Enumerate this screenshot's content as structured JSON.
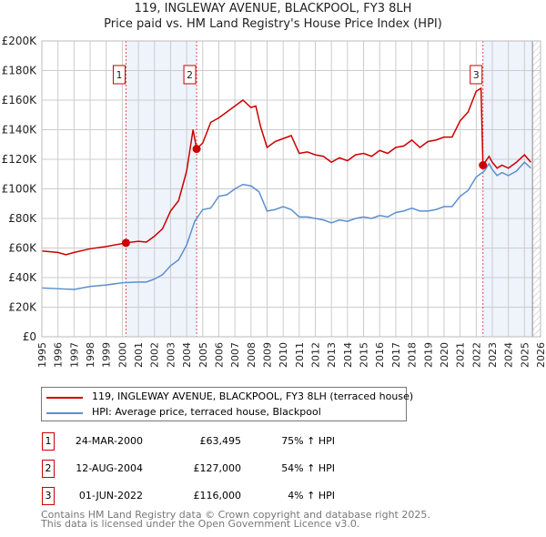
{
  "title_line1": "119, INGLEWAY AVENUE, BLACKPOOL, FY3 8LH",
  "title_line2": "Price paid vs. HM Land Registry's House Price Index (HPI)",
  "colors": {
    "property": "#cc0000",
    "hpi": "#5b8fd0",
    "shade": "#eef3fc",
    "grid": "#cccccc"
  },
  "chart_data": {
    "type": "line",
    "title": "Price paid vs. HM Land Registry's House Price Index (HPI)",
    "xlim": [
      1995,
      2026
    ],
    "ylim": [
      0,
      200000
    ],
    "x_ticks": [
      "1995",
      "1996",
      "1997",
      "1998",
      "1999",
      "2000",
      "2001",
      "2002",
      "2003",
      "2004",
      "2005",
      "2006",
      "2007",
      "2008",
      "2009",
      "2010",
      "2011",
      "2012",
      "2013",
      "2014",
      "2015",
      "2016",
      "2017",
      "2018",
      "2019",
      "2020",
      "2021",
      "2022",
      "2023",
      "2024",
      "2025",
      "2026"
    ],
    "y_ticks": [
      {
        "v": 0,
        "label": "£0"
      },
      {
        "v": 20000,
        "label": "£20K"
      },
      {
        "v": 40000,
        "label": "£40K"
      },
      {
        "v": 60000,
        "label": "£60K"
      },
      {
        "v": 80000,
        "label": "£80K"
      },
      {
        "v": 100000,
        "label": "£100K"
      },
      {
        "v": 120000,
        "label": "£120K"
      },
      {
        "v": 140000,
        "label": "£140K"
      },
      {
        "v": 160000,
        "label": "£160K"
      },
      {
        "v": 180000,
        "label": "£180K"
      },
      {
        "v": 200000,
        "label": "£200K"
      }
    ],
    "grid": true,
    "series": [
      {
        "name": "119, INGLEWAY AVENUE, BLACKPOOL, FY3 8LH (terraced house)",
        "color": "#cc0000",
        "x": [
          1995,
          1996,
          1996.5,
          1997,
          1998,
          1999,
          2000.23,
          2001,
          2001.5,
          2002,
          2002.5,
          2003,
          2003.5,
          2004,
          2004.4,
          2004.62,
          2005,
          2005.5,
          2006,
          2006.5,
          2007,
          2007.5,
          2008,
          2008.3,
          2008.6,
          2009,
          2009.5,
          2010,
          2010.5,
          2011,
          2011.5,
          2012,
          2012.5,
          2013,
          2013.5,
          2014,
          2014.5,
          2015,
          2015.5,
          2016,
          2016.5,
          2017,
          2017.5,
          2018,
          2018.5,
          2019,
          2019.5,
          2020,
          2020.5,
          2021,
          2021.5,
          2022,
          2022.3,
          2022.42,
          2022.8,
          2023,
          2023.3,
          2023.6,
          2024,
          2024.5,
          2025,
          2025.4
        ],
        "y": [
          58,
          57,
          55.5,
          57,
          59.5,
          61,
          63.5,
          64.5,
          64,
          68,
          73,
          85,
          92,
          112,
          140,
          127,
          131,
          145,
          148,
          152,
          156,
          160,
          155,
          156,
          142,
          128,
          132,
          134,
          136,
          124,
          125,
          123,
          122,
          118,
          121,
          119,
          123,
          124,
          122,
          126,
          124,
          128,
          129,
          133,
          128,
          132,
          133,
          135,
          135,
          146,
          152,
          166,
          168,
          116,
          122,
          118,
          114,
          116,
          114,
          118,
          123,
          118
        ]
      },
      {
        "name": "HPI: Average price, terraced house, Blackpool",
        "color": "#5b8fd0",
        "x": [
          1995,
          1996,
          1997,
          1998,
          1999,
          2000,
          2001,
          2001.5,
          2002,
          2002.5,
          2003,
          2003.5,
          2004,
          2004.5,
          2005,
          2005.5,
          2006,
          2006.5,
          2007,
          2007.5,
          2008,
          2008.5,
          2009,
          2009.5,
          2010,
          2010.5,
          2011,
          2011.5,
          2012,
          2012.5,
          2013,
          2013.5,
          2014,
          2014.5,
          2015,
          2015.5,
          2016,
          2016.5,
          2017,
          2017.5,
          2018,
          2018.5,
          2019,
          2019.5,
          2020,
          2020.5,
          2021,
          2021.5,
          2022,
          2022.5,
          2022.8,
          2023,
          2023.3,
          2023.6,
          2024,
          2024.5,
          2025,
          2025.4
        ],
        "y": [
          33,
          32.5,
          32,
          34,
          35,
          36.5,
          37,
          37,
          39,
          42,
          48,
          52,
          62,
          78,
          86,
          87,
          95,
          96,
          100,
          103,
          102,
          98,
          85,
          86,
          88,
          86,
          81,
          81,
          80,
          79,
          77,
          79,
          78,
          80,
          81,
          80,
          82,
          81,
          84,
          85,
          87,
          85,
          85,
          86,
          88,
          88,
          95,
          99,
          108,
          112,
          117,
          113,
          109,
          111,
          109,
          112,
          118,
          114
        ]
      }
    ],
    "y_units": 1000,
    "shaded_ranges": [
      [
        2000.23,
        2004.62
      ],
      [
        2022.42,
        2025.5
      ]
    ],
    "hatched_from": 2025.5,
    "sales": [
      {
        "label": "1",
        "x": 2000.23,
        "y": 63495
      },
      {
        "label": "2",
        "x": 2004.62,
        "y": 127000
      },
      {
        "label": "3",
        "x": 2022.42,
        "y": 116000
      }
    ]
  },
  "legend": [
    {
      "label": "119, INGLEWAY AVENUE, BLACKPOOL, FY3 8LH (terraced house)"
    },
    {
      "label": "HPI: Average price, terraced house, Blackpool"
    }
  ],
  "transactions": [
    {
      "num": "1",
      "date": "24-MAR-2000",
      "price": "£63,495",
      "hpi": "75% ↑ HPI"
    },
    {
      "num": "2",
      "date": "12-AUG-2004",
      "price": "£127,000",
      "hpi": "54% ↑ HPI"
    },
    {
      "num": "3",
      "date": "01-JUN-2022",
      "price": "£116,000",
      "hpi": "4% ↑ HPI"
    }
  ],
  "footer_line1": "Contains HM Land Registry data © Crown copyright and database right 2025.",
  "footer_line2": "This data is licensed under the Open Government Licence v3.0."
}
